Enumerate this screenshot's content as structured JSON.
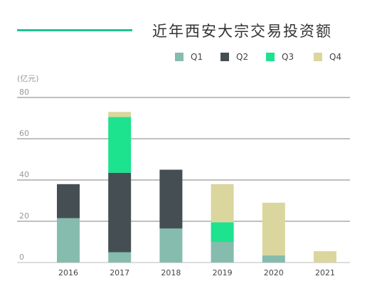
{
  "chart_data": {
    "type": "bar",
    "stacked": true,
    "title": "近年西安大宗交易投资额",
    "unit": "(亿元)",
    "categories": [
      "2016",
      "2017",
      "2018",
      "2019",
      "2020",
      "2021"
    ],
    "series": [
      {
        "name": "Q1",
        "color": "#86bcad",
        "values": [
          21.5,
          5.0,
          16.5,
          10.0,
          3.5,
          0
        ]
      },
      {
        "name": "Q2",
        "color": "#454f53",
        "values": [
          16.5,
          38.5,
          28.5,
          0,
          0,
          0
        ]
      },
      {
        "name": "Q3",
        "color": "#1de28e",
        "values": [
          0,
          27.0,
          0,
          9.5,
          0,
          0
        ]
      },
      {
        "name": "Q4",
        "color": "#dbd69e",
        "values": [
          0,
          2.5,
          0,
          18.5,
          25.5,
          5.5
        ]
      }
    ],
    "yticks": [
      0,
      20,
      40,
      60,
      80
    ],
    "ylim": [
      0,
      80
    ],
    "grid": true,
    "legend_position": "top-right"
  }
}
